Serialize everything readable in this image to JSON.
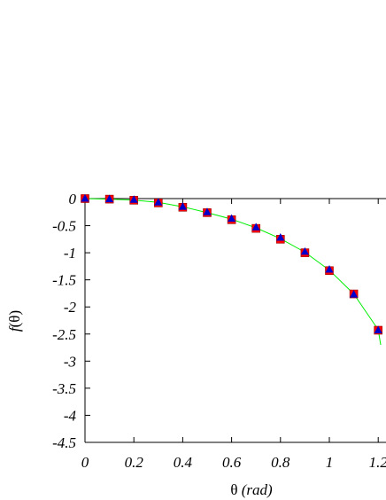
{
  "chart_data": {
    "type": "scatter",
    "title": "",
    "xlabel_symbol": "θ",
    "xlabel_unit": "(rad)",
    "ylabel_func": "f",
    "ylabel_arg": "(θ)",
    "xlim": [
      -0.05,
      1.21
    ],
    "ylim": [
      -4.5,
      0
    ],
    "x_ticks": [
      0,
      0.2,
      0.4,
      0.6,
      0.8,
      1,
      1.2
    ],
    "x_tick_labels": [
      "0",
      "0.2",
      "0.4",
      "0.6",
      "0.8",
      "1",
      "1.2"
    ],
    "y_ticks": [
      0,
      -0.5,
      -1,
      -1.5,
      -2,
      -2.5,
      -3,
      -3.5,
      -4,
      -4.5
    ],
    "y_tick_labels": [
      "0",
      "-0.5",
      "-1",
      "-1.5",
      "-2",
      "-2.5",
      "-3",
      "-3.5",
      "-4",
      "-4.5"
    ],
    "grid": false,
    "series": [
      {
        "marker": "square",
        "color": "#ff0000",
        "x": [
          0,
          0.1,
          0.2,
          0.3,
          0.4,
          0.5,
          0.6,
          0.7,
          0.8,
          0.9,
          1.0,
          1.1,
          1.2
        ],
        "y": [
          0,
          -0.01,
          -0.03,
          -0.08,
          -0.16,
          -0.26,
          -0.39,
          -0.55,
          -0.75,
          -1.0,
          -1.33,
          -1.76,
          -2.43
        ]
      },
      {
        "marker": "triangle",
        "color": "#0000cc",
        "x": [
          0,
          0.1,
          0.2,
          0.3,
          0.4,
          0.5,
          0.6,
          0.7,
          0.8,
          0.9,
          1.0,
          1.1,
          1.2
        ],
        "y": [
          0,
          -0.01,
          -0.02,
          -0.07,
          -0.15,
          -0.25,
          -0.37,
          -0.53,
          -0.72,
          -0.98,
          -1.31,
          -1.77,
          -2.43
        ]
      },
      {
        "line": true,
        "color": "#00ee00",
        "x": [
          0,
          0.1,
          0.2,
          0.3,
          0.4,
          0.5,
          0.6,
          0.7,
          0.8,
          0.9,
          1.0,
          1.1,
          1.2,
          1.21
        ],
        "y": [
          0,
          -0.01,
          -0.03,
          -0.07,
          -0.15,
          -0.26,
          -0.38,
          -0.54,
          -0.74,
          -0.99,
          -1.32,
          -1.76,
          -2.42,
          -2.7
        ]
      }
    ]
  }
}
